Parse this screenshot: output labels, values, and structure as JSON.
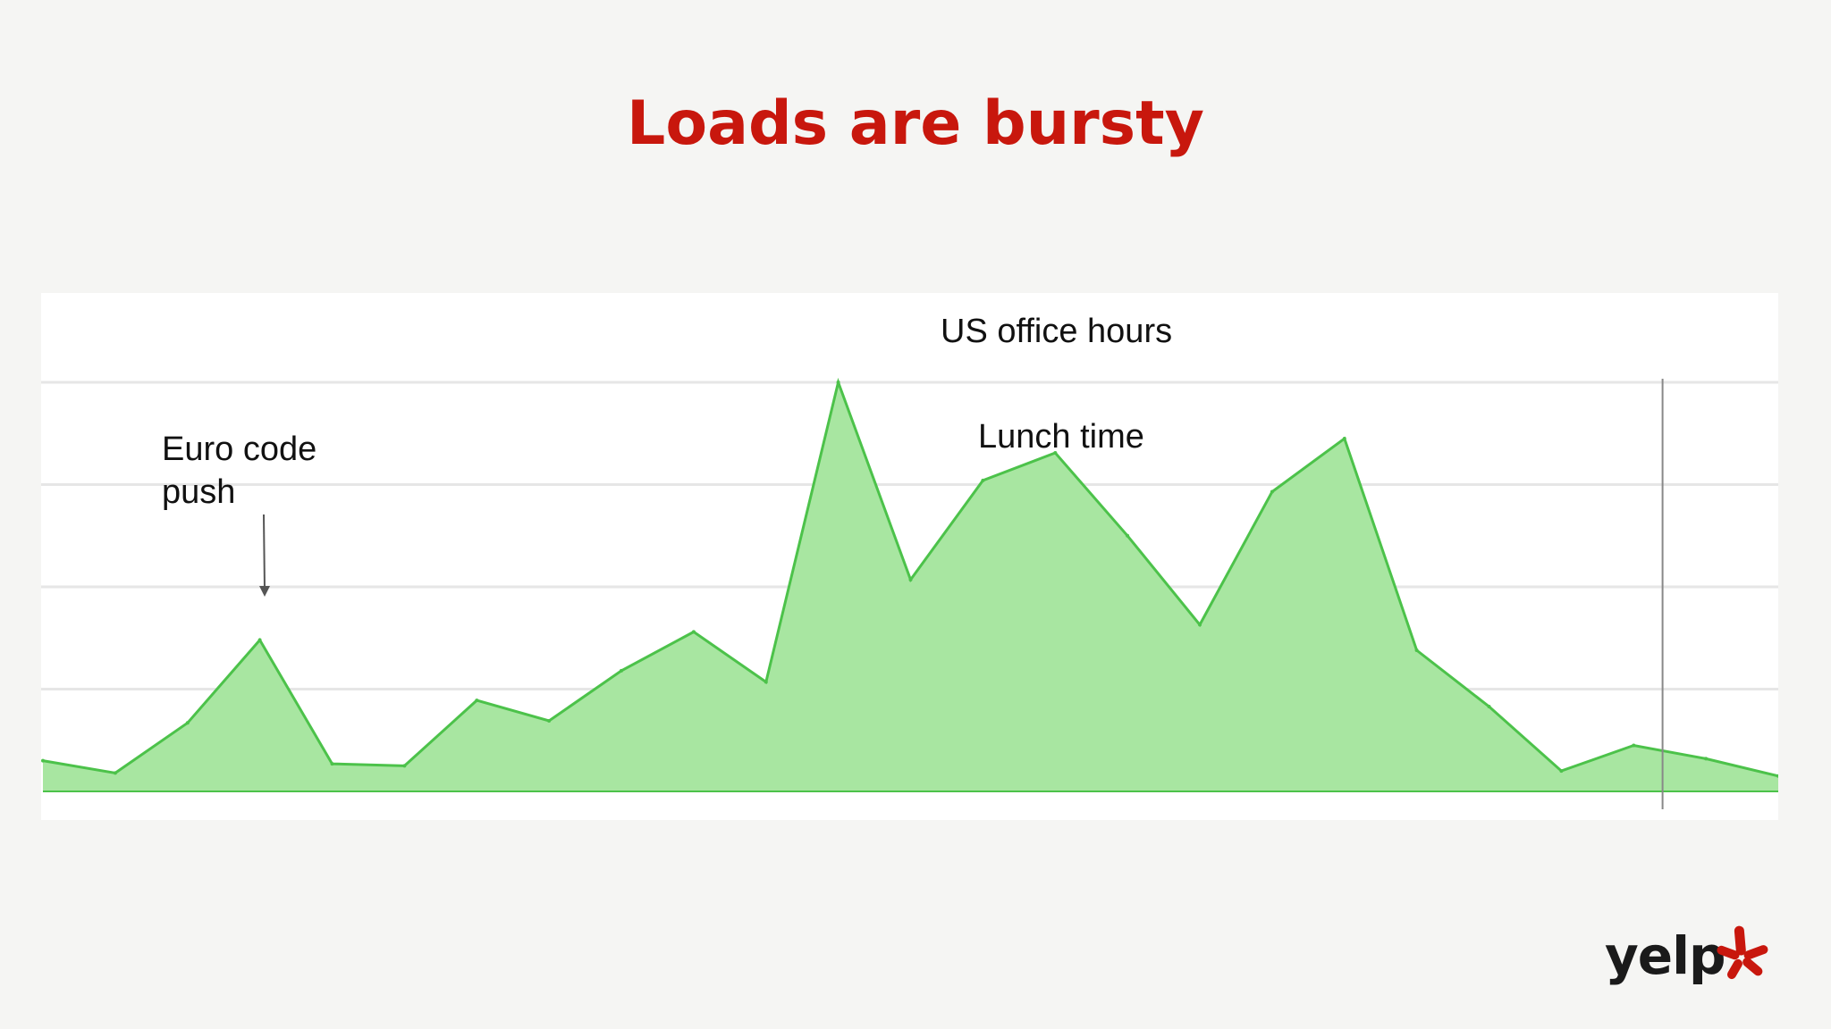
{
  "slide": {
    "title": "Loads are bursty"
  },
  "chart_data": {
    "type": "area",
    "title": "",
    "xlabel": "",
    "ylabel": "",
    "ylim": [
      0,
      4
    ],
    "grid": true,
    "fill_color": "#a8e6a1",
    "line_color": "#4cc24a",
    "values": [
      0.3,
      0.18,
      0.67,
      1.48,
      0.27,
      0.25,
      0.89,
      0.69,
      1.18,
      1.56,
      1.07,
      4.0,
      2.07,
      3.04,
      3.31,
      2.5,
      1.63,
      2.93,
      3.45,
      1.38,
      0.83,
      0.2,
      0.45,
      0.32,
      0.15
    ],
    "annotations": [
      {
        "text": "US office hours"
      },
      {
        "text": "Lunch time"
      },
      {
        "text": "Euro code push"
      }
    ],
    "marker_index": 22.4
  },
  "annotations": {
    "us_office": "US office hours",
    "lunch": "Lunch time",
    "euro_line1": "Euro code",
    "euro_line2": "push"
  },
  "logo": {
    "word": "yelp",
    "color": "#c8170d",
    "icon": "yelp-burst-icon"
  }
}
